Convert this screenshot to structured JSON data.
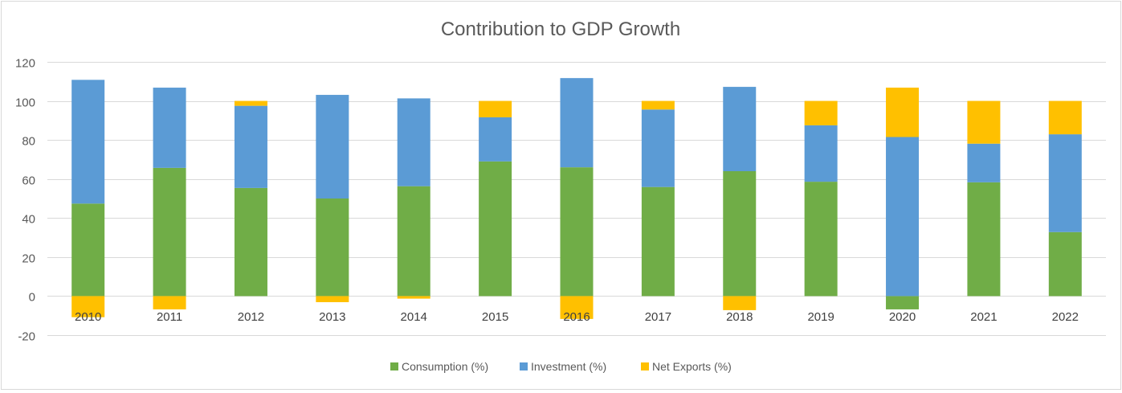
{
  "chart_data": {
    "type": "bar",
    "stacked": true,
    "title": "Contribution to GDP Growth",
    "xlabel": "",
    "ylabel": "",
    "ylim": [
      -20,
      120
    ],
    "yticks": [
      -20,
      0,
      20,
      40,
      60,
      80,
      100,
      120
    ],
    "grid": true,
    "legend_position": "bottom",
    "categories": [
      "2010",
      "2011",
      "2012",
      "2013",
      "2014",
      "2015",
      "2016",
      "2017",
      "2018",
      "2019",
      "2020",
      "2021",
      "2022"
    ],
    "series": [
      {
        "name": "Consumption (%)",
        "color": "#70AD47",
        "values": [
          47.4,
          65.7,
          55.4,
          50.0,
          56.3,
          69.0,
          66.0,
          55.9,
          64.0,
          58.6,
          -6.8,
          58.3,
          32.8
        ]
      },
      {
        "name": "Investment (%)",
        "color": "#5B9BD5",
        "values": [
          63.4,
          41.1,
          42.1,
          53.1,
          45.0,
          22.6,
          45.7,
          39.7,
          43.2,
          28.9,
          81.5,
          19.8,
          50.1
        ]
      },
      {
        "name": "Net Exports (%)",
        "color": "#FFC000",
        "values": [
          -10.8,
          -6.8,
          2.5,
          -3.1,
          -1.3,
          8.4,
          -11.7,
          4.4,
          -7.2,
          12.5,
          25.3,
          21.9,
          17.1
        ]
      }
    ]
  }
}
